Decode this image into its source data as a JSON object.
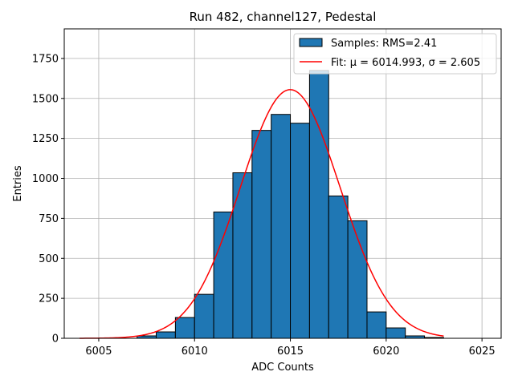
{
  "chart_data": {
    "type": "histogram",
    "title": "Run 482, channel127, Pedestal",
    "xlabel": "ADC Counts",
    "ylabel": "Entries",
    "xlim": [
      6003.2,
      6026.0
    ],
    "ylim": [
      0,
      1935
    ],
    "xticks": [
      6005,
      6010,
      6015,
      6020,
      6025
    ],
    "yticks": [
      0,
      250,
      500,
      750,
      1000,
      1250,
      1500,
      1750
    ],
    "grid": true,
    "bins": {
      "edges": [
        6007,
        6008,
        6009,
        6010,
        6011,
        6012,
        6013,
        6014,
        6015,
        6016,
        6017,
        6018,
        6019,
        6020,
        6021,
        6022,
        6023
      ],
      "counts": [
        15,
        40,
        130,
        275,
        790,
        1035,
        1300,
        1400,
        1345,
        1675,
        890,
        735,
        165,
        65,
        15,
        5
      ],
      "color": "#1f77b4",
      "edgecolor": "#000000"
    },
    "fit": {
      "mu": 6014.993,
      "sigma": 2.605,
      "amplitude": 1555,
      "x_range": [
        6004,
        6023
      ],
      "color": "#ff0000"
    },
    "legend": {
      "position": "top-right",
      "entries": [
        {
          "label": "Samples: RMS=2.41",
          "kind": "patch"
        },
        {
          "label": "Fit: μ = 6014.993, σ = 2.605",
          "kind": "line"
        }
      ]
    }
  }
}
